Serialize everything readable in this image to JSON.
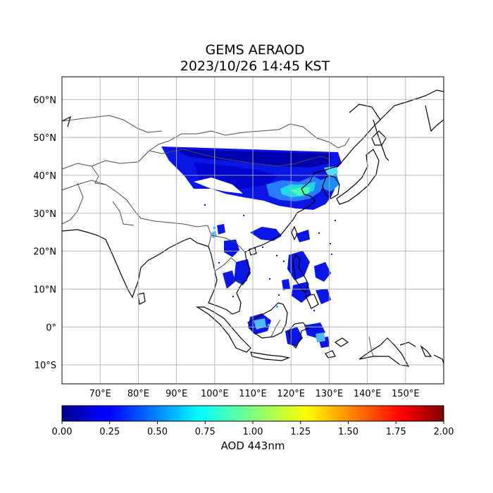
{
  "map": {
    "title": "GEMS AERAOD",
    "subtitle": "2023/10/26 14:45 KST",
    "lon_range": [
      60,
      160
    ],
    "lat_range": [
      -15,
      66
    ],
    "lon_ticks": [
      "70°E",
      "80°E",
      "90°E",
      "100°E",
      "110°E",
      "120°E",
      "130°E",
      "140°E",
      "150°E"
    ],
    "lat_ticks": [
      "60°N",
      "50°N",
      "40°N",
      "30°N",
      "20°N",
      "10°N",
      "0°",
      "10°S"
    ],
    "grid": true,
    "colormap": "jet"
  },
  "colorbar": {
    "label": "AOD 443nm",
    "min": 0.0,
    "max": 2.0,
    "ticks": [
      "0.00",
      "0.25",
      "0.50",
      "0.75",
      "1.00",
      "1.25",
      "1.50",
      "1.75",
      "2.00"
    ]
  }
}
